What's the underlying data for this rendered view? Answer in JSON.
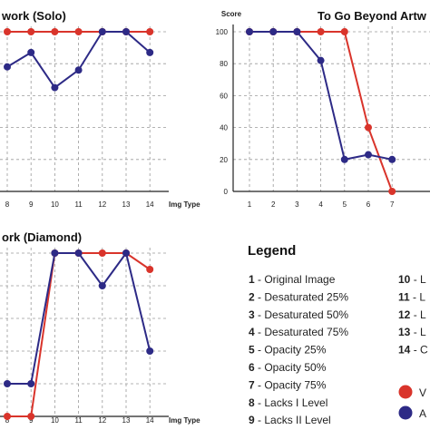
{
  "chart_data": [
    {
      "type": "line",
      "title": "work (Solo)",
      "xlabel": "Img Type",
      "x": [
        8,
        9,
        10,
        11,
        12,
        13,
        14
      ],
      "ylim": [
        0,
        100
      ],
      "series": [
        {
          "name": "",
          "color": "#d9342b",
          "values": [
            100,
            100,
            100,
            100,
            100,
            100,
            100
          ]
        },
        {
          "name": "",
          "color": "#2d2a86",
          "values": [
            78,
            87,
            65,
            76,
            100,
            100,
            87
          ]
        }
      ]
    },
    {
      "type": "line",
      "title": "To Go Beyond Artw",
      "ylabel": "Score",
      "x": [
        1,
        2,
        3,
        4,
        5,
        6,
        7
      ],
      "yticks": [
        0,
        20,
        40,
        60,
        80,
        100
      ],
      "ylim": [
        0,
        100
      ],
      "series": [
        {
          "name": "",
          "color": "#d9342b",
          "values": [
            100,
            100,
            100,
            100,
            100,
            40,
            0
          ]
        },
        {
          "name": "",
          "color": "#2d2a86",
          "values": [
            100,
            100,
            100,
            82,
            20,
            23,
            20
          ]
        }
      ]
    },
    {
      "type": "line",
      "title": "ork (Diamond)",
      "xlabel": "Img Type",
      "x": [
        8,
        9,
        10,
        11,
        12,
        13,
        14
      ],
      "ylim": [
        0,
        100
      ],
      "series": [
        {
          "name": "",
          "color": "#d9342b",
          "values": [
            0,
            0,
            100,
            100,
            100,
            100,
            90
          ]
        },
        {
          "name": "",
          "color": "#2d2a86",
          "values": [
            20,
            20,
            100,
            100,
            80,
            100,
            40
          ]
        }
      ]
    }
  ],
  "legend": {
    "title": "Legend",
    "items": [
      {
        "num": "1",
        "label": "Original Image"
      },
      {
        "num": "2",
        "label": "Desaturated 25%"
      },
      {
        "num": "3",
        "label": "Desaturated 50%"
      },
      {
        "num": "4",
        "label": "Desaturated 75%"
      },
      {
        "num": "5",
        "label": "Opacity 25%"
      },
      {
        "num": "6",
        "label": "Opacity 50%"
      },
      {
        "num": "7",
        "label": "Opacity 75%"
      },
      {
        "num": "8",
        "label": "Lacks I Level"
      },
      {
        "num": "9",
        "label": "Lacks II Level"
      }
    ],
    "items_right": [
      {
        "num": "10",
        "label": "L"
      },
      {
        "num": "11",
        "label": "L"
      },
      {
        "num": "12",
        "label": "L"
      },
      {
        "num": "13",
        "label": "L"
      },
      {
        "num": "14",
        "label": "C"
      }
    ],
    "series_keys": [
      {
        "color": "#d9342b",
        "label": "V"
      },
      {
        "color": "#2d2a86",
        "label": "A"
      }
    ]
  }
}
